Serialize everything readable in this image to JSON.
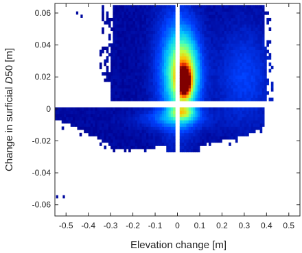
{
  "chart_data": {
    "type": "heatmap",
    "title": "",
    "xlabel": "Elevation change [m]",
    "ylabel_prefix": "Change in surficial ",
    "ylabel_italic": "D",
    "ylabel_suffix": "50 [m]",
    "xlim": [
      -0.55,
      0.55
    ],
    "ylim": [
      -0.067,
      0.066
    ],
    "x_ticks": [
      -0.5,
      -0.4,
      -0.3,
      -0.2,
      -0.1,
      0,
      0.1,
      0.2,
      0.3,
      0.4,
      0.5
    ],
    "x_tick_labels": [
      "-0.5",
      "-0.4",
      "-0.3",
      "-0.2",
      "-0.1",
      "0",
      "0.1",
      "0.2",
      "0.3",
      "0.4",
      "0.5"
    ],
    "y_ticks": [
      0.06,
      0.04,
      0.02,
      0,
      -0.02,
      -0.04,
      -0.06
    ],
    "y_tick_labels": [
      "0.06",
      "0.04",
      "0.02",
      "0",
      "-0.02",
      "-0.04",
      "-0.06"
    ],
    "grid": false,
    "colormap": "jet",
    "colormap_colors": [
      "#00008f",
      "#0040ff",
      "#00c0ff",
      "#40ffbf",
      "#c0ff40",
      "#ffbf00",
      "#ff4000",
      "#800000"
    ],
    "empty_bands": {
      "x_gap": [
        -0.012,
        0.012
      ],
      "y_gap": [
        0.0015,
        0.0045
      ]
    },
    "density_regions": [
      {
        "name": "upper-cluster",
        "x": [
          -0.3,
          0.4
        ],
        "y": [
          0.0045,
          0.065
        ]
      },
      {
        "name": "lower-band",
        "x": [
          -0.55,
          0.4
        ],
        "y": [
          -0.026,
          0.0015
        ]
      },
      {
        "name": "peak",
        "x": 0.03,
        "y": 0.017
      }
    ],
    "outliers": [
      {
        "x": -0.54,
        "y": -0.055
      },
      {
        "x": -0.51,
        "y": -0.055
      },
      {
        "x": -0.45,
        "y": 0.06
      },
      {
        "x": -0.43,
        "y": 0.058
      }
    ]
  }
}
